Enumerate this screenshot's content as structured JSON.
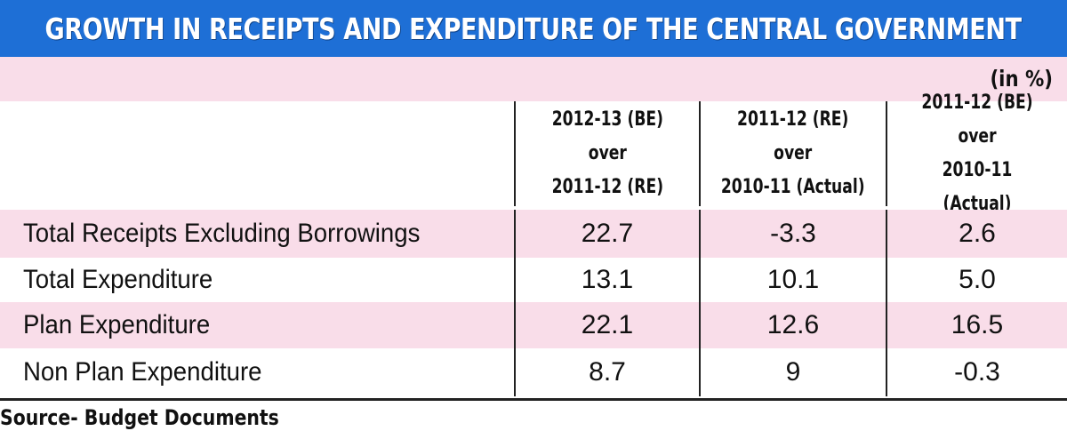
{
  "chart_data": {
    "type": "table",
    "title": "GROWTH IN RECEIPTS AND EXPENDITURE OF THE CENTRAL GOVERNMENT",
    "unit": "(in %)",
    "columns": [
      "",
      "2012-13 (BE)\nover\n2011-12 (RE)",
      "2011-12 (RE)\nover\n2010-11 (Actual)",
      "2011-12 (BE)\nover\n2010-11 (Actual)"
    ],
    "rows": [
      {
        "label": "Total Receipts Excluding Borrowings",
        "values": [
          "22.7",
          "-3.3",
          "2.6"
        ]
      },
      {
        "label": "Total Expenditure",
        "values": [
          "13.1",
          "10.1",
          "5.0"
        ]
      },
      {
        "label": "Plan Expenditure",
        "values": [
          "22.1",
          "12.6",
          "16.5"
        ]
      },
      {
        "label": "Non Plan Expenditure",
        "values": [
          "8.7",
          "9",
          "-0.3"
        ]
      }
    ],
    "source": "Source- Budget Documents"
  },
  "colors": {
    "title_background": "#1e6fd6",
    "title_text": "#ffffff",
    "stripe": "#f9dde9"
  }
}
